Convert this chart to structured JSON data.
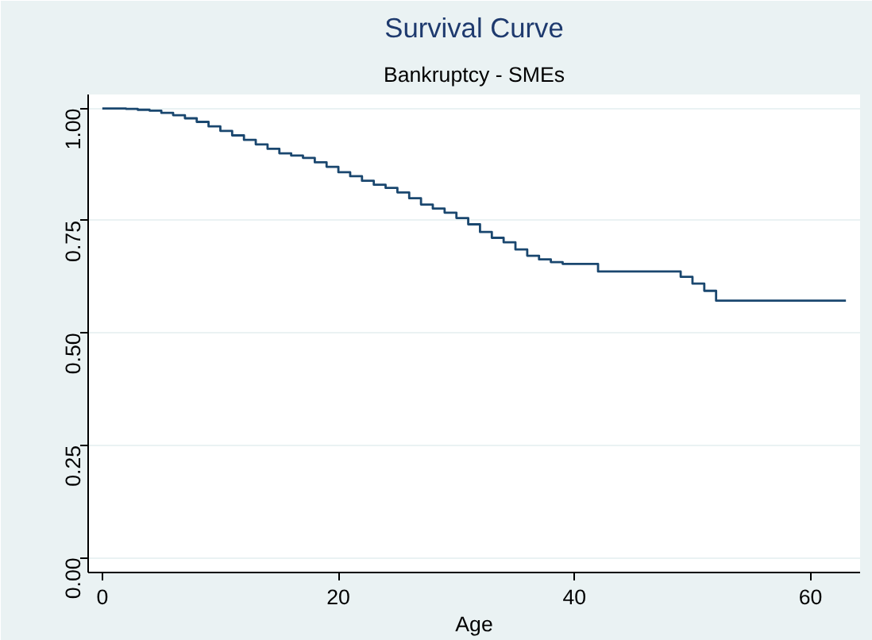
{
  "chart_data": {
    "type": "step",
    "title": "Survival Curve",
    "subtitle": "Bankruptcy - SMEs",
    "xlabel": "Age",
    "x": [
      0,
      1,
      2,
      3,
      4,
      5,
      6,
      7,
      8,
      9,
      10,
      11,
      12,
      13,
      14,
      15,
      16,
      17,
      18,
      19,
      20,
      21,
      22,
      23,
      24,
      25,
      26,
      27,
      28,
      29,
      30,
      31,
      32,
      33,
      34,
      35,
      36,
      37,
      38,
      39,
      42,
      49,
      50,
      51,
      52,
      63
    ],
    "series": [
      {
        "color": "#1a476f",
        "values": [
          1.0,
          1.0,
          0.999,
          0.997,
          0.995,
          0.99,
          0.985,
          0.978,
          0.97,
          0.96,
          0.95,
          0.94,
          0.93,
          0.92,
          0.91,
          0.9,
          0.895,
          0.89,
          0.88,
          0.87,
          0.858,
          0.849,
          0.839,
          0.83,
          0.823,
          0.813,
          0.8,
          0.786,
          0.777,
          0.768,
          0.756,
          0.742,
          0.725,
          0.712,
          0.702,
          0.686,
          0.672,
          0.664,
          0.658,
          0.654,
          0.637,
          0.625,
          0.61,
          0.594,
          0.572,
          0.572
        ]
      }
    ],
    "xlim": [
      -1.2,
      64.2
    ],
    "ylim": [
      -0.033,
      1.031
    ],
    "xticks": [
      0,
      20,
      40,
      60
    ],
    "yticks": [
      {
        "value": 0,
        "label": "0.00"
      },
      {
        "value": 0.25,
        "label": "0.25"
      },
      {
        "value": 0.5,
        "label": "0.50"
      },
      {
        "value": 0.75,
        "label": "0.75"
      },
      {
        "value": 1,
        "label": "1.00"
      }
    ],
    "grid": "y"
  }
}
